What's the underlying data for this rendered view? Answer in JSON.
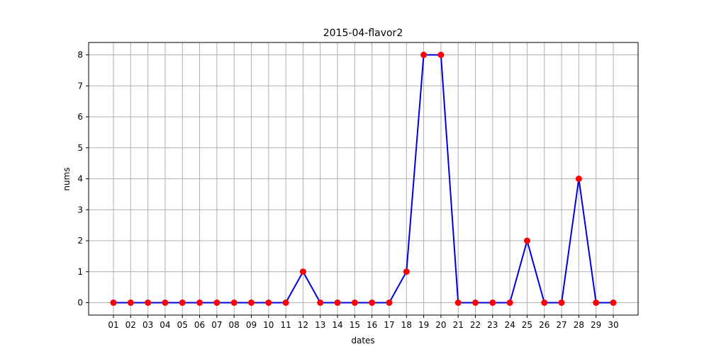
{
  "chart_data": {
    "type": "line",
    "title": "2015-04-flavor2",
    "xlabel": "dates",
    "ylabel": "nums",
    "categories": [
      "01",
      "02",
      "03",
      "04",
      "05",
      "06",
      "07",
      "08",
      "09",
      "10",
      "11",
      "12",
      "13",
      "14",
      "15",
      "16",
      "17",
      "18",
      "19",
      "20",
      "21",
      "22",
      "23",
      "24",
      "25",
      "26",
      "27",
      "28",
      "29",
      "30"
    ],
    "series": [
      {
        "values": [
          0,
          0,
          0,
          0,
          0,
          0,
          0,
          0,
          0,
          0,
          0,
          1,
          0,
          0,
          0,
          0,
          0,
          1,
          8,
          8,
          0,
          0,
          0,
          0,
          2,
          0,
          0,
          4,
          0,
          0
        ],
        "line_color": "#0000dd",
        "marker_color": "#ff0000"
      }
    ],
    "ylim": [
      -0.4,
      8.4
    ],
    "yticks": [
      0,
      1,
      2,
      3,
      4,
      5,
      6,
      7,
      8
    ],
    "grid": true
  }
}
